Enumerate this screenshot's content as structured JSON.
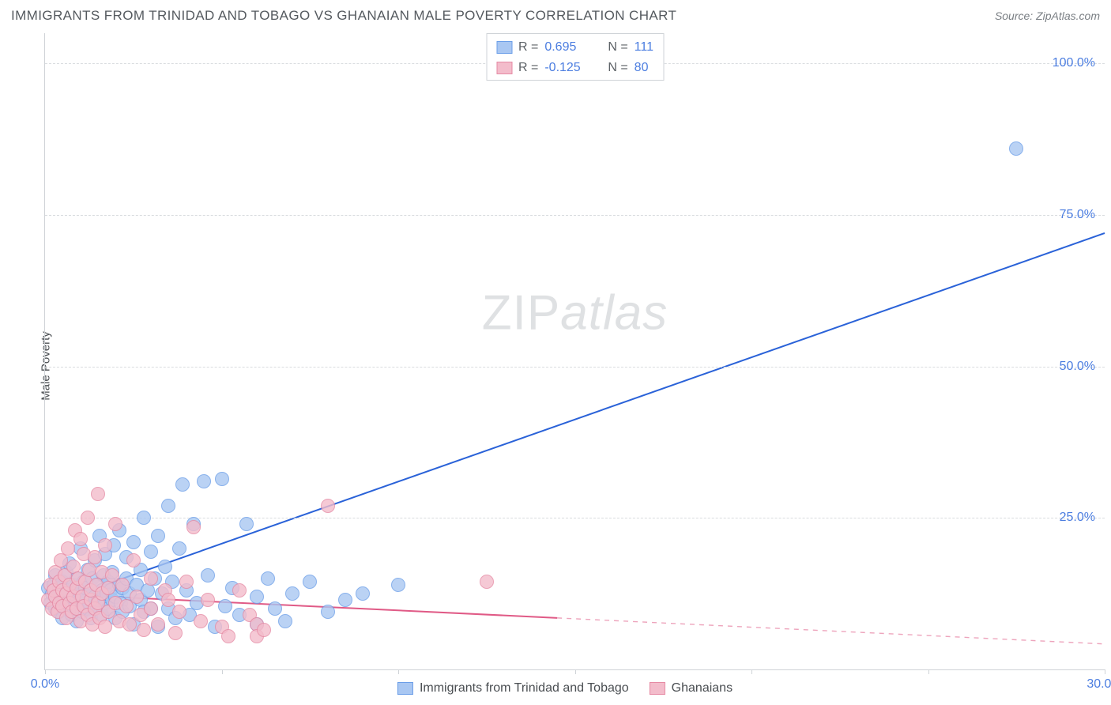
{
  "title": "IMMIGRANTS FROM TRINIDAD AND TOBAGO VS GHANAIAN MALE POVERTY CORRELATION CHART",
  "source": "Source: ZipAtlas.com",
  "ylabel": "Male Poverty",
  "watermark_zip": "ZIP",
  "watermark_atlas": "atlas",
  "chart": {
    "type": "scatter",
    "background_color": "#ffffff",
    "grid_color": "#d9dcdf",
    "axis_color": "#cfd3d7",
    "tick_label_color": "#4b7de0",
    "tick_fontsize": 16,
    "title_color": "#555a5f",
    "title_fontsize": 17,
    "ylabel_color": "#4a4e52",
    "ylabel_fontsize": 15,
    "xlim": [
      0,
      30
    ],
    "ylim": [
      0,
      105
    ],
    "x_ticks": [
      0,
      5,
      10,
      15,
      20,
      25,
      30
    ],
    "x_tick_labels": {
      "0": "0.0%",
      "30": "30.0%"
    },
    "y_gridlines": [
      25,
      50,
      75,
      100
    ],
    "y_tick_labels": {
      "25": "25.0%",
      "50": "50.0%",
      "75": "75.0%",
      "100": "100.0%"
    },
    "marker_radius": 9,
    "marker_stroke_width": 1.5,
    "marker_fill_opacity": 0.35,
    "trend_line_width": 2,
    "series": [
      {
        "key": "trinidad",
        "label": "Immigrants from Trinidad and Tobago",
        "color_stroke": "#6b9ee8",
        "color_fill": "#a9c7f2",
        "trend_color": "#2a62d8",
        "R": "0.695",
        "N": "111",
        "trend_solid": {
          "x1": 0,
          "y1": 10.5,
          "x2": 30,
          "y2": 72
        },
        "trend_dashed": null,
        "points": [
          [
            0.1,
            13.5
          ],
          [
            0.15,
            11
          ],
          [
            0.2,
            12.5
          ],
          [
            0.25,
            14
          ],
          [
            0.3,
            10
          ],
          [
            0.3,
            15.5
          ],
          [
            0.35,
            12
          ],
          [
            0.4,
            13.5
          ],
          [
            0.4,
            9.5
          ],
          [
            0.45,
            11.5
          ],
          [
            0.5,
            14.5
          ],
          [
            0.5,
            8.5
          ],
          [
            0.55,
            12
          ],
          [
            0.6,
            16
          ],
          [
            0.6,
            10.5
          ],
          [
            0.65,
            13
          ],
          [
            0.7,
            11.5
          ],
          [
            0.7,
            17.5
          ],
          [
            0.75,
            9
          ],
          [
            0.8,
            14
          ],
          [
            0.8,
            12.5
          ],
          [
            0.85,
            10.5
          ],
          [
            0.9,
            15
          ],
          [
            0.9,
            8
          ],
          [
            0.95,
            13
          ],
          [
            1.0,
            11.5
          ],
          [
            1.0,
            20
          ],
          [
            1.05,
            9.5
          ],
          [
            1.1,
            14.5
          ],
          [
            1.1,
            12
          ],
          [
            1.15,
            13.5
          ],
          [
            1.2,
            10
          ],
          [
            1.2,
            16.5
          ],
          [
            1.25,
            11
          ],
          [
            1.3,
            13
          ],
          [
            1.3,
            8.5
          ],
          [
            1.35,
            15
          ],
          [
            1.4,
            12
          ],
          [
            1.4,
            18
          ],
          [
            1.45,
            10.5
          ],
          [
            1.5,
            14
          ],
          [
            1.5,
            11.5
          ],
          [
            1.55,
            22
          ],
          [
            1.6,
            13
          ],
          [
            1.6,
            9
          ],
          [
            1.65,
            15.5
          ],
          [
            1.7,
            11
          ],
          [
            1.7,
            19
          ],
          [
            1.75,
            12.5
          ],
          [
            1.8,
            14.5
          ],
          [
            1.8,
            10
          ],
          [
            1.85,
            13
          ],
          [
            1.9,
            16
          ],
          [
            1.9,
            11.5
          ],
          [
            1.95,
            20.5
          ],
          [
            2.0,
            12
          ],
          [
            2.0,
            8.5
          ],
          [
            2.1,
            14
          ],
          [
            2.1,
            23
          ],
          [
            2.15,
            11
          ],
          [
            2.2,
            13.5
          ],
          [
            2.2,
            9.5
          ],
          [
            2.3,
            15
          ],
          [
            2.3,
            18.5
          ],
          [
            2.4,
            10.5
          ],
          [
            2.4,
            12.5
          ],
          [
            2.5,
            21
          ],
          [
            2.5,
            7.5
          ],
          [
            2.6,
            14
          ],
          [
            2.7,
            11.5
          ],
          [
            2.7,
            16.5
          ],
          [
            2.8,
            9.5
          ],
          [
            2.8,
            25
          ],
          [
            2.9,
            13
          ],
          [
            3.0,
            19.5
          ],
          [
            3.0,
            10
          ],
          [
            3.1,
            15
          ],
          [
            3.2,
            7
          ],
          [
            3.2,
            22
          ],
          [
            3.3,
            12.5
          ],
          [
            3.4,
            17
          ],
          [
            3.5,
            10
          ],
          [
            3.5,
            27
          ],
          [
            3.6,
            14.5
          ],
          [
            3.7,
            8.5
          ],
          [
            3.8,
            20
          ],
          [
            3.9,
            30.5
          ],
          [
            4.0,
            13
          ],
          [
            4.1,
            9
          ],
          [
            4.2,
            24
          ],
          [
            4.3,
            11
          ],
          [
            4.5,
            31
          ],
          [
            4.6,
            15.5
          ],
          [
            4.8,
            7
          ],
          [
            5.0,
            31.5
          ],
          [
            5.1,
            10.5
          ],
          [
            5.3,
            13.5
          ],
          [
            5.5,
            9
          ],
          [
            5.7,
            24
          ],
          [
            6.0,
            12
          ],
          [
            6.0,
            7.5
          ],
          [
            6.3,
            15
          ],
          [
            6.5,
            10
          ],
          [
            6.8,
            8
          ],
          [
            7.0,
            12.5
          ],
          [
            7.5,
            14.5
          ],
          [
            8.0,
            9.5
          ],
          [
            8.5,
            11.5
          ],
          [
            9.0,
            12.5
          ],
          [
            10.0,
            14
          ],
          [
            27.5,
            86
          ]
        ]
      },
      {
        "key": "ghanaian",
        "label": "Ghanaians",
        "color_stroke": "#e68aa4",
        "color_fill": "#f3bccb",
        "trend_color": "#e05a86",
        "R": "-0.125",
        "N": "80",
        "trend_solid": {
          "x1": 0,
          "y1": 12.5,
          "x2": 14.5,
          "y2": 8.5
        },
        "trend_dashed": {
          "x1": 14.5,
          "y1": 8.5,
          "x2": 30,
          "y2": 4.2
        },
        "points": [
          [
            0.1,
            11.5
          ],
          [
            0.15,
            14
          ],
          [
            0.2,
            10
          ],
          [
            0.25,
            13
          ],
          [
            0.3,
            16
          ],
          [
            0.3,
            12
          ],
          [
            0.35,
            9.5
          ],
          [
            0.4,
            14.5
          ],
          [
            0.4,
            11
          ],
          [
            0.45,
            18
          ],
          [
            0.5,
            10.5
          ],
          [
            0.5,
            13
          ],
          [
            0.55,
            15.5
          ],
          [
            0.6,
            8.5
          ],
          [
            0.6,
            12.5
          ],
          [
            0.65,
            20
          ],
          [
            0.7,
            11
          ],
          [
            0.7,
            14
          ],
          [
            0.75,
            9.5
          ],
          [
            0.8,
            17
          ],
          [
            0.8,
            12
          ],
          [
            0.85,
            23
          ],
          [
            0.9,
            10
          ],
          [
            0.9,
            13.5
          ],
          [
            0.95,
            15
          ],
          [
            1.0,
            8
          ],
          [
            1.0,
            21.5
          ],
          [
            1.05,
            12
          ],
          [
            1.1,
            19
          ],
          [
            1.1,
            10.5
          ],
          [
            1.15,
            14.5
          ],
          [
            1.2,
            25
          ],
          [
            1.2,
            9
          ],
          [
            1.25,
            16.5
          ],
          [
            1.3,
            11.5
          ],
          [
            1.3,
            13
          ],
          [
            1.35,
            7.5
          ],
          [
            1.4,
            18.5
          ],
          [
            1.4,
            10
          ],
          [
            1.45,
            14
          ],
          [
            1.5,
            29
          ],
          [
            1.5,
            11
          ],
          [
            1.55,
            8.5
          ],
          [
            1.6,
            16
          ],
          [
            1.6,
            12.5
          ],
          [
            1.7,
            7
          ],
          [
            1.7,
            20.5
          ],
          [
            1.8,
            13.5
          ],
          [
            1.8,
            9.5
          ],
          [
            1.9,
            15.5
          ],
          [
            2.0,
            11
          ],
          [
            2.0,
            24
          ],
          [
            2.1,
            8
          ],
          [
            2.2,
            14
          ],
          [
            2.3,
            10.5
          ],
          [
            2.4,
            7.5
          ],
          [
            2.5,
            18
          ],
          [
            2.6,
            12
          ],
          [
            2.7,
            9
          ],
          [
            2.8,
            6.5
          ],
          [
            3.0,
            15
          ],
          [
            3.0,
            10
          ],
          [
            3.2,
            7.5
          ],
          [
            3.4,
            13
          ],
          [
            3.5,
            11.5
          ],
          [
            3.7,
            6
          ],
          [
            3.8,
            9.5
          ],
          [
            4.0,
            14.5
          ],
          [
            4.2,
            23.5
          ],
          [
            4.4,
            8
          ],
          [
            4.6,
            11.5
          ],
          [
            5.0,
            7
          ],
          [
            5.2,
            5.5
          ],
          [
            5.5,
            13
          ],
          [
            5.8,
            9
          ],
          [
            6.0,
            7.5
          ],
          [
            6.0,
            5.5
          ],
          [
            6.2,
            6.5
          ],
          [
            8.0,
            27
          ],
          [
            12.5,
            14.5
          ]
        ]
      }
    ]
  },
  "legend_top": {
    "r_label": "R =",
    "n_label": "N ="
  }
}
